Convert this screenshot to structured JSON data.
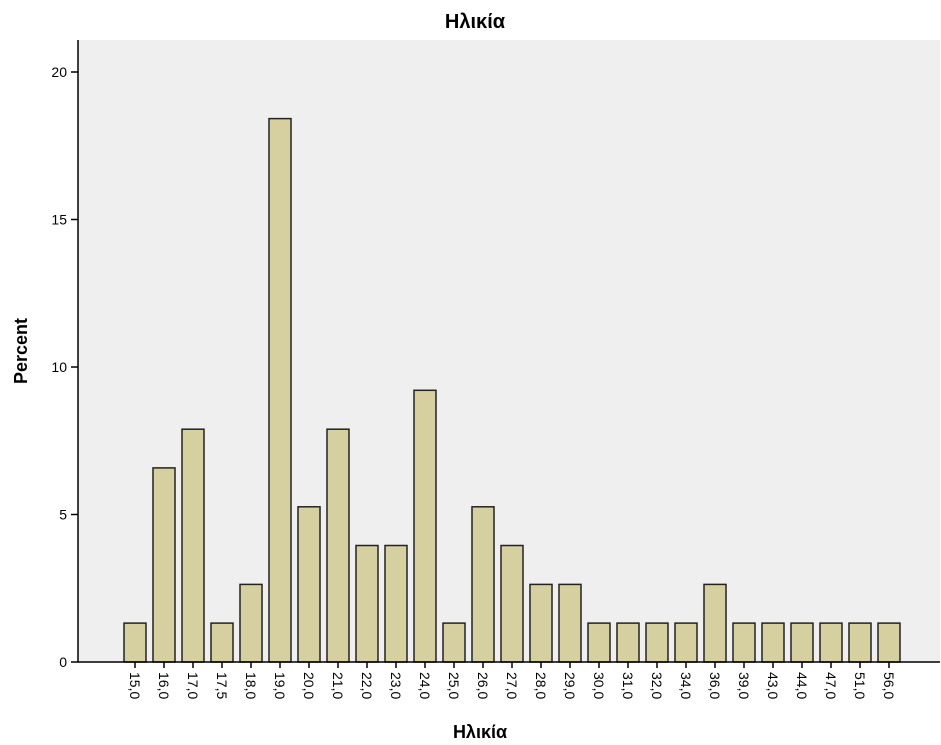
{
  "chart_data": {
    "type": "bar",
    "title": "Ηλικία",
    "xlabel": "Ηλικία",
    "ylabel": "Percent",
    "ylim": [
      0,
      20
    ],
    "yticks": [
      "0",
      "5",
      "10",
      "15",
      "20"
    ],
    "categories": [
      "15,0",
      "16,0",
      "17,0",
      "17,5",
      "18,0",
      "19,0",
      "20,0",
      "21,0",
      "22,0",
      "23,0",
      "24,0",
      "25,0",
      "26,0",
      "27,0",
      "28,0",
      "29,0",
      "30,0",
      "31,0",
      "32,0",
      "34,0",
      "36,0",
      "39,0",
      "43,0",
      "44,0",
      "47,0",
      "51,0",
      "56,0"
    ],
    "values": [
      1.32,
      6.58,
      7.89,
      1.32,
      2.63,
      18.42,
      5.26,
      7.89,
      3.95,
      3.95,
      9.21,
      1.32,
      5.26,
      3.95,
      2.63,
      2.63,
      1.32,
      1.32,
      1.32,
      1.32,
      2.63,
      1.32,
      1.32,
      1.32,
      1.32,
      1.32,
      1.32
    ],
    "grid": false,
    "colors": {
      "plot_background": "#efefef",
      "bar_fill": "#d6d0a0",
      "bar_stroke": "#222222",
      "axis": "#000000"
    }
  }
}
